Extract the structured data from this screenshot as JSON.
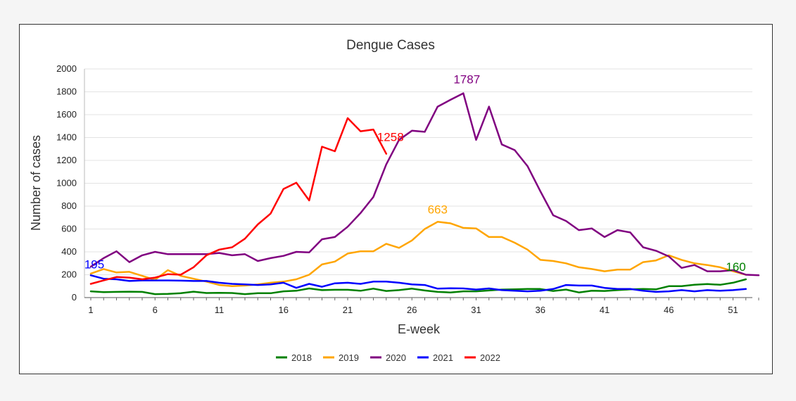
{
  "chart_data": {
    "type": "line",
    "title": "Dengue Cases",
    "xlabel": "E-week",
    "ylabel": "Number of cases",
    "xlim": [
      1,
      53
    ],
    "ylim": [
      0,
      2000
    ],
    "x_ticks": [
      1,
      6,
      11,
      16,
      21,
      26,
      31,
      36,
      41,
      46,
      51
    ],
    "y_ticks": [
      0,
      200,
      400,
      600,
      800,
      1000,
      1200,
      1400,
      1600,
      1800,
      2000
    ],
    "grid": true,
    "legend_position": "bottom",
    "series": [
      {
        "name": "2018",
        "color": "#008000",
        "x": [
          1,
          2,
          3,
          4,
          5,
          6,
          7,
          8,
          9,
          10,
          11,
          12,
          13,
          14,
          15,
          16,
          17,
          18,
          19,
          20,
          21,
          22,
          23,
          24,
          25,
          26,
          27,
          28,
          29,
          30,
          31,
          32,
          33,
          34,
          35,
          36,
          37,
          38,
          39,
          40,
          41,
          42,
          43,
          44,
          45,
          46,
          47,
          48,
          49,
          50,
          51,
          52
        ],
        "values": [
          55,
          48,
          50,
          52,
          50,
          30,
          32,
          38,
          52,
          40,
          42,
          40,
          30,
          38,
          38,
          55,
          60,
          80,
          65,
          68,
          68,
          60,
          78,
          58,
          65,
          78,
          62,
          50,
          45,
          55,
          55,
          62,
          70,
          72,
          75,
          75,
          58,
          70,
          45,
          60,
          58,
          65,
          72,
          75,
          72,
          100,
          100,
          112,
          118,
          112,
          130,
          160
        ]
      },
      {
        "name": "2019",
        "color": "#FFA500",
        "x": [
          1,
          2,
          3,
          4,
          5,
          6,
          7,
          8,
          9,
          10,
          11,
          12,
          13,
          14,
          15,
          16,
          17,
          18,
          19,
          20,
          21,
          22,
          23,
          24,
          25,
          26,
          27,
          28,
          29,
          30,
          31,
          32,
          33,
          34,
          35,
          36,
          37,
          38,
          39,
          40,
          41,
          42,
          43,
          44,
          45,
          46,
          47,
          48,
          49,
          50,
          51,
          52
        ],
        "values": [
          210,
          250,
          220,
          225,
          190,
          155,
          240,
          190,
          165,
          140,
          110,
          100,
          105,
          115,
          130,
          140,
          160,
          200,
          290,
          315,
          385,
          405,
          405,
          470,
          435,
          500,
          600,
          663,
          650,
          610,
          605,
          530,
          530,
          480,
          420,
          330,
          320,
          300,
          265,
          250,
          230,
          245,
          245,
          310,
          325,
          370,
          330,
          300,
          285,
          265,
          230,
          200
        ]
      },
      {
        "name": "2020",
        "color": "#800080",
        "x": [
          1,
          2,
          3,
          4,
          5,
          6,
          7,
          8,
          9,
          10,
          11,
          12,
          13,
          14,
          15,
          16,
          17,
          18,
          19,
          20,
          21,
          22,
          23,
          24,
          25,
          26,
          27,
          28,
          29,
          30,
          31,
          32,
          33,
          34,
          35,
          36,
          37,
          38,
          39,
          40,
          41,
          42,
          43,
          44,
          45,
          46,
          47,
          48,
          49,
          50,
          51,
          52,
          53
        ],
        "values": [
          270,
          345,
          405,
          310,
          370,
          400,
          380,
          380,
          380,
          380,
          390,
          370,
          380,
          320,
          345,
          365,
          400,
          395,
          510,
          530,
          620,
          740,
          880,
          1165,
          1380,
          1460,
          1450,
          1670,
          1730,
          1787,
          1380,
          1670,
          1340,
          1290,
          1150,
          930,
          720,
          670,
          590,
          605,
          530,
          590,
          570,
          440,
          410,
          360,
          260,
          285,
          230,
          230,
          240,
          200,
          195
        ]
      },
      {
        "name": "2021",
        "color": "#0000FF",
        "x": [
          1,
          2,
          3,
          4,
          5,
          6,
          7,
          8,
          9,
          10,
          11,
          12,
          13,
          14,
          15,
          16,
          17,
          18,
          19,
          20,
          21,
          22,
          23,
          24,
          25,
          26,
          27,
          28,
          29,
          30,
          31,
          32,
          33,
          34,
          35,
          36,
          37,
          38,
          39,
          40,
          41,
          42,
          43,
          44,
          45,
          46,
          47,
          48,
          49,
          50,
          51,
          52
        ],
        "values": [
          195,
          165,
          160,
          145,
          150,
          150,
          150,
          148,
          145,
          145,
          130,
          120,
          115,
          110,
          115,
          130,
          85,
          120,
          95,
          125,
          130,
          120,
          140,
          140,
          130,
          115,
          110,
          78,
          82,
          80,
          70,
          80,
          65,
          60,
          55,
          60,
          75,
          110,
          105,
          105,
          85,
          75,
          75,
          60,
          50,
          55,
          65,
          55,
          65,
          60,
          65,
          75
        ]
      },
      {
        "name": "2022",
        "color": "#FF0000",
        "x": [
          1,
          2,
          3,
          4,
          5,
          6,
          7,
          8,
          9,
          10,
          11,
          12,
          13,
          14,
          15,
          16,
          17,
          18,
          19,
          20,
          21,
          22,
          23,
          24
        ],
        "values": [
          120,
          150,
          180,
          175,
          160,
          175,
          205,
          200,
          265,
          370,
          420,
          440,
          515,
          640,
          735,
          950,
          1005,
          850,
          1320,
          1280,
          1570,
          1455,
          1470,
          1258
        ]
      }
    ],
    "annotations": [
      {
        "text": "195",
        "color": "#0000FF"
      },
      {
        "text": "1258",
        "color": "#FF0000"
      },
      {
        "text": "1787",
        "color": "#800080"
      },
      {
        "text": "663",
        "color": "#FFA500"
      },
      {
        "text": "160",
        "color": "#008000"
      }
    ]
  }
}
